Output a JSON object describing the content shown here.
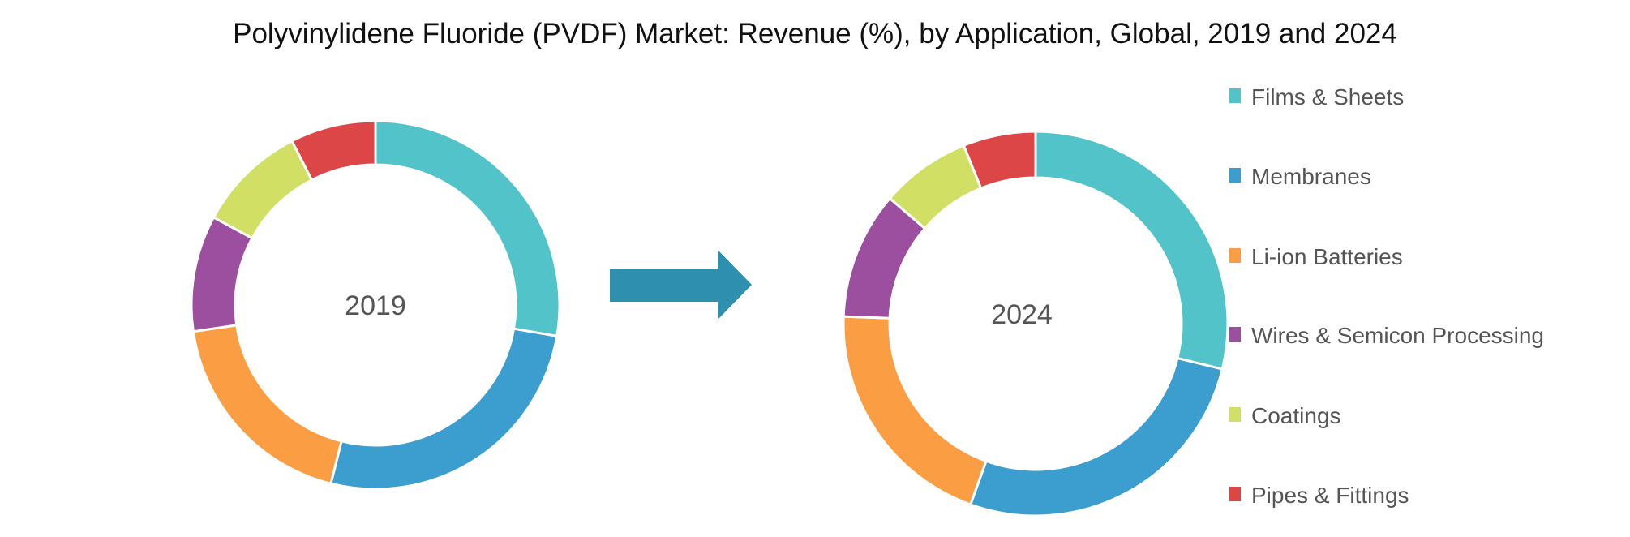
{
  "chart_data": {
    "type": "pie",
    "title": "Polyvinylidene Fluoride (PVDF) Market: Revenue (%), by Application, Global, 2019 and 2024",
    "categories": [
      "Films & Sheets",
      "Membranes",
      "Li-ion Batteries",
      "Wires & Semicon Processing",
      "Coatings",
      "Pipes & Fittings"
    ],
    "colors": [
      "#52C3C9",
      "#3C9DCF",
      "#FB9D42",
      "#9B4F9E",
      "#D2DF65",
      "#DD4646"
    ],
    "legend_position": "right",
    "charts": [
      {
        "label": "2019",
        "values": [
          27.7,
          26.2,
          18.8,
          10.2,
          9.6,
          7.5
        ]
      },
      {
        "label": "2024",
        "values": [
          28.8,
          26.7,
          20.1,
          10.7,
          7.6,
          6.1
        ]
      }
    ],
    "arrow_color": "#2E8FAF"
  }
}
